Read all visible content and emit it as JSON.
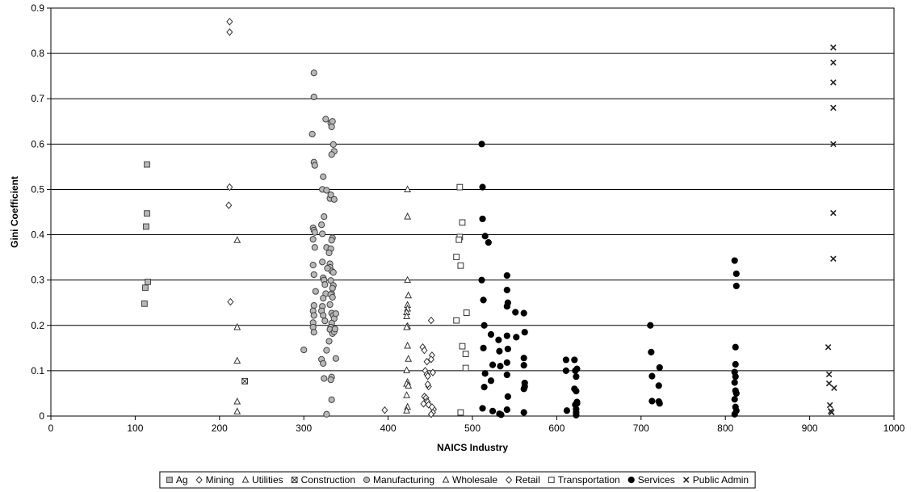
{
  "chart_data": {
    "type": "scatter",
    "title": "",
    "xlabel": "NAICS Industry",
    "ylabel": "Gini Coefficient",
    "xlim": [
      0,
      1000
    ],
    "ylim": [
      0,
      0.9
    ],
    "xticks": [
      "0",
      "100",
      "200",
      "300",
      "400",
      "500",
      "600",
      "700",
      "800",
      "900",
      "1000"
    ],
    "yticks": [
      "0",
      "0.1",
      "0.2",
      "0.3",
      "0.4",
      "0.5",
      "0.6",
      "0.7",
      "0.8",
      "0.9"
    ],
    "grid": "horizontal",
    "legend_position": "bottom",
    "series": [
      {
        "name": "Ag",
        "marker": "square-gray",
        "points": [
          [
            114,
            0.555
          ],
          [
            114,
            0.447
          ],
          [
            113,
            0.418
          ],
          [
            115,
            0.296
          ],
          [
            112,
            0.283
          ],
          [
            111,
            0.248
          ]
        ]
      },
      {
        "name": "Mining",
        "marker": "diamond",
        "points": [
          [
            212,
            0.87
          ],
          [
            212,
            0.847
          ],
          [
            212,
            0.505
          ],
          [
            211,
            0.465
          ],
          [
            213,
            0.252
          ]
        ]
      },
      {
        "name": "Utilities",
        "marker": "triangle",
        "points": [
          [
            221,
            0.388
          ],
          [
            221,
            0.196
          ],
          [
            221,
            0.122
          ],
          [
            221,
            0.032
          ],
          [
            221,
            0.01
          ]
        ]
      },
      {
        "name": "Construction",
        "marker": "boxx",
        "points": [
          [
            230,
            0.077
          ]
        ]
      },
      {
        "name": "Manufacturing",
        "marker": "circle-gray",
        "points": [
          [
            312,
            0.757
          ],
          [
            312,
            0.704
          ],
          [
            310,
            0.622
          ],
          [
            312,
            0.56
          ],
          [
            313,
            0.553
          ],
          [
            311,
            0.415
          ],
          [
            312,
            0.41
          ],
          [
            313,
            0.405
          ],
          [
            311,
            0.39
          ],
          [
            313,
            0.372
          ],
          [
            311,
            0.333
          ],
          [
            312,
            0.312
          ],
          [
            314,
            0.275
          ],
          [
            312,
            0.244
          ],
          [
            311,
            0.232
          ],
          [
            312,
            0.222
          ],
          [
            311,
            0.206
          ],
          [
            311,
            0.196
          ],
          [
            312,
            0.185
          ],
          [
            300,
            0.146
          ],
          [
            322,
            0.5
          ],
          [
            321,
            0.422
          ],
          [
            324,
            0.44
          ],
          [
            326,
            0.655
          ],
          [
            323,
            0.528
          ],
          [
            322,
            0.402
          ],
          [
            322,
            0.34
          ],
          [
            323,
            0.305
          ],
          [
            324,
            0.3
          ],
          [
            325,
            0.29
          ],
          [
            326,
            0.27
          ],
          [
            327,
            0.372
          ],
          [
            323,
            0.26
          ],
          [
            322,
            0.242
          ],
          [
            321,
            0.232
          ],
          [
            323,
            0.222
          ],
          [
            325,
            0.21
          ],
          [
            321,
            0.125
          ],
          [
            323,
            0.116
          ],
          [
            324,
            0.083
          ],
          [
            327,
            0.004
          ],
          [
            327,
            0.498
          ],
          [
            331,
            0.48
          ],
          [
            332,
            0.646
          ],
          [
            334,
            0.65
          ],
          [
            333,
            0.638
          ],
          [
            335,
            0.599
          ],
          [
            336,
            0.584
          ],
          [
            333,
            0.577
          ],
          [
            332,
            0.488
          ],
          [
            336,
            0.478
          ],
          [
            334,
            0.393
          ],
          [
            333,
            0.388
          ],
          [
            332,
            0.369
          ],
          [
            331,
            0.336
          ],
          [
            331,
            0.328
          ],
          [
            333,
            0.32
          ],
          [
            335,
            0.317
          ],
          [
            332,
            0.299
          ],
          [
            335,
            0.288
          ],
          [
            334,
            0.282
          ],
          [
            333,
            0.27
          ],
          [
            332,
            0.268
          ],
          [
            334,
            0.262
          ],
          [
            331,
            0.246
          ],
          [
            333,
            0.227
          ],
          [
            335,
            0.222
          ],
          [
            336,
            0.215
          ],
          [
            333,
            0.205
          ],
          [
            332,
            0.196
          ],
          [
            331,
            0.191
          ],
          [
            334,
            0.182
          ],
          [
            336,
            0.186
          ],
          [
            338,
            0.226
          ],
          [
            337,
            0.192
          ],
          [
            338,
            0.127
          ],
          [
            333,
            0.086
          ],
          [
            332,
            0.08
          ],
          [
            333,
            0.036
          ],
          [
            330,
            0.165
          ],
          [
            327,
            0.145
          ],
          [
            328,
            0.326
          ],
          [
            330,
            0.36
          ]
        ]
      },
      {
        "name": "Wholesale",
        "marker": "triangle",
        "points": [
          [
            423,
            0.5
          ],
          [
            423,
            0.44
          ],
          [
            423,
            0.3
          ],
          [
            424,
            0.266
          ],
          [
            423,
            0.245
          ],
          [
            423,
            0.237
          ],
          [
            422,
            0.229
          ],
          [
            422,
            0.22
          ],
          [
            423,
            0.198
          ],
          [
            422,
            0.196
          ],
          [
            423,
            0.155
          ],
          [
            424,
            0.126
          ],
          [
            422,
            0.101
          ],
          [
            423,
            0.075
          ],
          [
            422,
            0.071
          ],
          [
            424,
            0.067
          ],
          [
            422,
            0.046
          ],
          [
            423,
            0.02
          ],
          [
            422,
            0.012
          ]
        ]
      },
      {
        "name": "Retail",
        "marker": "diamond",
        "points": [
          [
            396,
            0.013
          ],
          [
            441,
            0.152
          ],
          [
            443,
            0.145
          ],
          [
            446,
            0.12
          ],
          [
            444,
            0.1
          ],
          [
            446,
            0.092
          ],
          [
            447,
            0.088
          ],
          [
            443,
            0.043
          ],
          [
            445,
            0.04
          ],
          [
            446,
            0.033
          ],
          [
            447,
            0.031
          ],
          [
            442,
            0.027
          ],
          [
            448,
            0.065
          ],
          [
            447,
            0.07
          ],
          [
            451,
            0.211
          ],
          [
            452,
            0.134
          ],
          [
            451,
            0.125
          ],
          [
            453,
            0.096
          ],
          [
            454,
            0.015
          ],
          [
            453,
            0.008
          ],
          [
            451,
            0.004
          ],
          [
            448,
            0.025
          ],
          [
            452,
            0.02
          ]
        ]
      },
      {
        "name": "Transportation",
        "marker": "square-white",
        "points": [
          [
            485,
            0.505
          ],
          [
            488,
            0.427
          ],
          [
            485,
            0.395
          ],
          [
            484,
            0.389
          ],
          [
            481,
            0.351
          ],
          [
            486,
            0.332
          ],
          [
            493,
            0.228
          ],
          [
            481,
            0.211
          ],
          [
            492,
            0.137
          ],
          [
            488,
            0.154
          ],
          [
            492,
            0.106
          ],
          [
            486,
            0.008
          ]
        ]
      },
      {
        "name": "Services",
        "marker": "circle-black",
        "points": [
          [
            511,
            0.6
          ],
          [
            512,
            0.505
          ],
          [
            512,
            0.435
          ],
          [
            515,
            0.397
          ],
          [
            519,
            0.383
          ],
          [
            511,
            0.3
          ],
          [
            513,
            0.256
          ],
          [
            514,
            0.2
          ],
          [
            513,
            0.15
          ],
          [
            515,
            0.094
          ],
          [
            514,
            0.064
          ],
          [
            512,
            0.017
          ],
          [
            522,
            0.18
          ],
          [
            524,
            0.113
          ],
          [
            522,
            0.078
          ],
          [
            524,
            0.011
          ],
          [
            531,
            0.168
          ],
          [
            532,
            0.143
          ],
          [
            533,
            0.11
          ],
          [
            532,
            0.005
          ],
          [
            534,
            0.003
          ],
          [
            541,
            0.31
          ],
          [
            541,
            0.278
          ],
          [
            542,
            0.25
          ],
          [
            541,
            0.242
          ],
          [
            541,
            0.177
          ],
          [
            542,
            0.148
          ],
          [
            541,
            0.118
          ],
          [
            541,
            0.091
          ],
          [
            542,
            0.043
          ],
          [
            541,
            0.014
          ],
          [
            551,
            0.229
          ],
          [
            552,
            0.174
          ],
          [
            561,
            0.227
          ],
          [
            562,
            0.185
          ],
          [
            561,
            0.128
          ],
          [
            561,
            0.112
          ],
          [
            562,
            0.073
          ],
          [
            562,
            0.065
          ],
          [
            561,
            0.06
          ],
          [
            561,
            0.008
          ],
          [
            611,
            0.124
          ],
          [
            611,
            0.1
          ],
          [
            612,
            0.012
          ],
          [
            621,
            0.124
          ],
          [
            622,
            0.1
          ],
          [
            621,
            0.06
          ],
          [
            622,
            0.025
          ],
          [
            623,
            0.087
          ],
          [
            623,
            0.055
          ],
          [
            624,
            0.104
          ],
          [
            624,
            0.031
          ],
          [
            624,
            0.028
          ],
          [
            623,
            0.015
          ],
          [
            623,
            0.008
          ],
          [
            623,
            0.002
          ],
          [
            711,
            0.2
          ],
          [
            712,
            0.141
          ],
          [
            713,
            0.088
          ],
          [
            713,
            0.033
          ],
          [
            722,
            0.107
          ],
          [
            721,
            0.067
          ],
          [
            721,
            0.032
          ],
          [
            722,
            0.028
          ],
          [
            811,
            0.343
          ],
          [
            813,
            0.314
          ],
          [
            813,
            0.287
          ],
          [
            812,
            0.152
          ],
          [
            812,
            0.114
          ],
          [
            811,
            0.097
          ],
          [
            812,
            0.087
          ],
          [
            811,
            0.074
          ],
          [
            812,
            0.056
          ],
          [
            813,
            0.05
          ],
          [
            811,
            0.037
          ],
          [
            812,
            0.02
          ],
          [
            813,
            0.012
          ],
          [
            811,
            0.004
          ]
        ]
      },
      {
        "name": "Public Admin",
        "marker": "x",
        "points": [
          [
            928,
            0.813
          ],
          [
            928,
            0.78
          ],
          [
            928,
            0.736
          ],
          [
            928,
            0.68
          ],
          [
            928,
            0.6
          ],
          [
            928,
            0.448
          ],
          [
            928,
            0.347
          ],
          [
            922,
            0.152
          ],
          [
            923,
            0.092
          ],
          [
            923,
            0.072
          ],
          [
            929,
            0.062
          ],
          [
            924,
            0.024
          ],
          [
            925,
            0.011
          ],
          [
            926,
            0.008
          ]
        ]
      }
    ]
  }
}
